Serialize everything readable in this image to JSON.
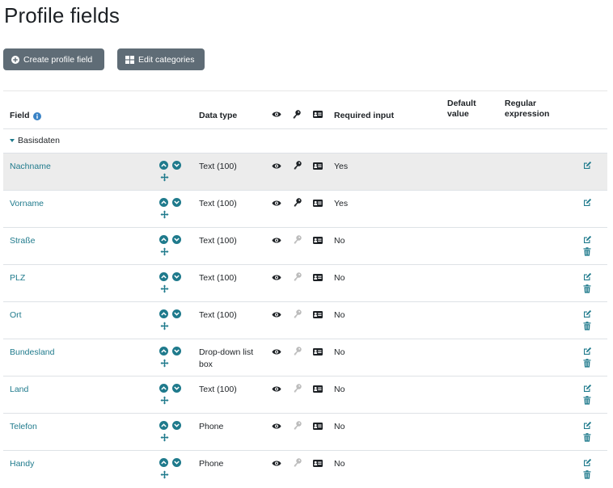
{
  "page": {
    "title": "Profile fields"
  },
  "actions": {
    "create_label": "Create profile field",
    "edit_categories_label": "Edit categories"
  },
  "table": {
    "headers": {
      "field": "Field",
      "data_type": "Data type",
      "required": "Required input",
      "default_value_1": "Default",
      "default_value_2": "value",
      "regex_1": "Regular",
      "regex_2": "expression"
    },
    "category": "Basisdaten",
    "rows": [
      {
        "name": "Nachname",
        "type": "Text (100)",
        "required": "Yes",
        "locked": true,
        "deletable": false,
        "highlighted": true
      },
      {
        "name": "Vorname",
        "type": "Text (100)",
        "required": "Yes",
        "locked": true,
        "deletable": false,
        "highlighted": false
      },
      {
        "name": "Straße",
        "type": "Text (100)",
        "required": "No",
        "locked": false,
        "deletable": true,
        "highlighted": false
      },
      {
        "name": "PLZ",
        "type": "Text (100)",
        "required": "No",
        "locked": false,
        "deletable": true,
        "highlighted": false
      },
      {
        "name": "Ort",
        "type": "Text (100)",
        "required": "No",
        "locked": false,
        "deletable": true,
        "highlighted": false
      },
      {
        "name": "Bundesland",
        "type": "Drop-down list box",
        "required": "No",
        "locked": false,
        "deletable": true,
        "highlighted": false
      },
      {
        "name": "Land",
        "type": "Text (100)",
        "required": "No",
        "locked": false,
        "deletable": true,
        "highlighted": false
      },
      {
        "name": "Telefon",
        "type": "Phone",
        "required": "No",
        "locked": false,
        "deletable": true,
        "highlighted": false
      },
      {
        "name": "Handy",
        "type": "Phone",
        "required": "No",
        "locked": false,
        "deletable": true,
        "highlighted": false
      }
    ]
  },
  "colors": {
    "link": "#1f7a8c",
    "button": "#5f6c76",
    "info": "#3a83c6",
    "row_highlight": "#ececec"
  },
  "icons": [
    "plus-circle-icon",
    "grid-icon",
    "info-icon",
    "caret-down-icon",
    "chevron-up-icon",
    "chevron-down-icon",
    "move-icon",
    "eye-icon",
    "key-icon",
    "id-card-icon",
    "edit-icon",
    "trash-icon"
  ]
}
